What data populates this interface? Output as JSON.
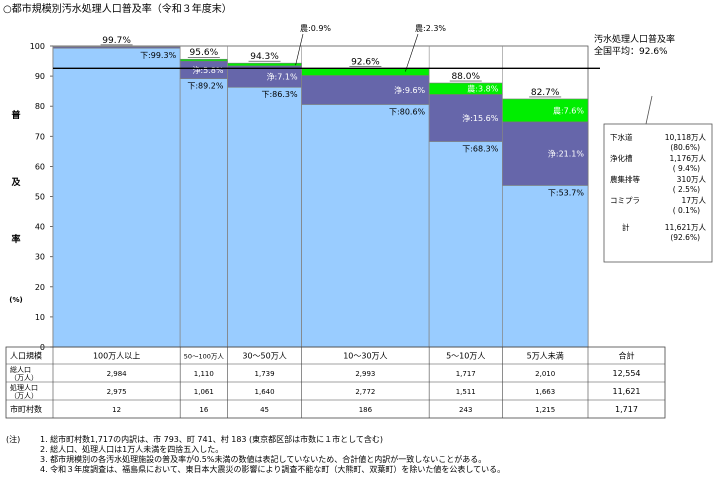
{
  "title": "○都市規模別汚水処理人口普及率（令和３年度末）",
  "chart_data": {
    "type": "bar",
    "title": "○都市規模別汚水処理人口普及率（令和３年度末）",
    "ylabel_chars": [
      "普",
      "及",
      "率",
      "(%)"
    ],
    "ylim": [
      0,
      100
    ],
    "yticks": [
      0,
      10,
      20,
      30,
      40,
      50,
      60,
      70,
      80,
      90,
      100
    ],
    "categories": [
      "100万人以上",
      "50～100万人",
      "30～50万人",
      "10～30万人",
      "5～10万人",
      "5万人未満"
    ],
    "category_widths_rel": [
      2984,
      1110,
      1739,
      2993,
      1717,
      2010
    ],
    "series": [
      {
        "name": "下",
        "values": [
          99.3,
          89.2,
          86.3,
          80.6,
          68.3,
          53.7
        ],
        "color": "#99ccff"
      },
      {
        "name": "浄",
        "values": [
          0.4,
          5.8,
          7.1,
          9.6,
          15.6,
          21.1
        ],
        "color": "#6666aa"
      },
      {
        "name": "農",
        "values": [
          0.0,
          0.6,
          0.9,
          2.3,
          3.8,
          7.6
        ],
        "color": "#00ee00"
      }
    ],
    "totals": [
      "99.7%",
      "95.6%",
      "94.3%",
      "92.6%",
      "88.0%",
      "82.7%"
    ],
    "bar_labels": {
      "sewer": [
        "下:99.3%",
        "下:89.2%",
        "下:86.3%",
        "下:80.6%",
        "下:68.3%",
        "下:53.7%"
      ],
      "johka": [
        "",
        "浄:5.8%",
        "浄:7.1%",
        "浄:9.6%",
        "浄:15.6%",
        "浄:21.1%"
      ],
      "agri": [
        "",
        "",
        "",
        "",
        "農:3.8%",
        "農:7.6%"
      ]
    },
    "callouts": [
      "農:0.9%",
      "農:2.3%"
    ],
    "national_average": 92.6,
    "average_label_line1": "汚水処理人口普及率",
    "average_label_line2": "全国平均：92.6%",
    "legend_box": {
      "rows": [
        {
          "name": "下水道",
          "value": "10,118万人",
          "pct": "(80.6%)"
        },
        {
          "name": "浄化槽",
          "value": "1,176万人",
          "pct": "( 9.4%)"
        },
        {
          "name": "農集排等",
          "value": "310万人",
          "pct": "( 2.5%)"
        },
        {
          "name": "コミプラ",
          "value": "17万人",
          "pct": "( 0.1%)"
        }
      ],
      "total": {
        "name": "計",
        "value": "11,621万人",
        "pct": "(92.6%)"
      }
    }
  },
  "table": {
    "rows": [
      {
        "header": "人口規模",
        "cells": [
          "100万人以上",
          "50～100万人",
          "30～50万人",
          "10～30万人",
          "5～10万人",
          "5万人未満",
          "合計"
        ]
      },
      {
        "header": "総人口\n（万人）",
        "cells": [
          "2,984",
          "1,110",
          "1,739",
          "2,993",
          "1,717",
          "2,010",
          "12,554"
        ]
      },
      {
        "header": "処理人口\n（万人）",
        "cells": [
          "2,975",
          "1,061",
          "1,640",
          "2,772",
          "1,511",
          "1,663",
          "11,621"
        ]
      },
      {
        "header": "市町村数",
        "cells": [
          "12",
          "16",
          "45",
          "186",
          "243",
          "1,215",
          "1,717"
        ]
      }
    ]
  },
  "notes": {
    "label": "(注)",
    "items": [
      "1. 総市町村数1,717の内訳は、市 793、町 741、村 183 (東京都区部は市数に１市として含む)",
      "2. 総人口、処理人口は1万人未満を四捨五入した。",
      "3. 都市規模別の各汚水処理施設の普及率が0.5%未満の数値は表記していないため、合計値と内訳が一致しないことがある。",
      "4. 令和３年度調査は、福島県において、東日本大震災の影響により調査不能な町（大熊町、双葉町）を除いた値を公表している。"
    ]
  }
}
